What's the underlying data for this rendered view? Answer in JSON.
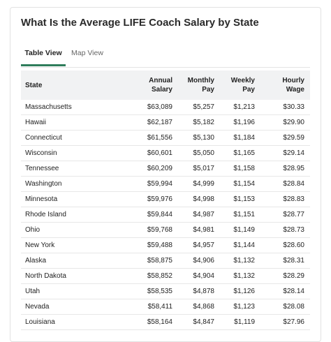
{
  "header": {
    "title": "What Is the Average LIFE Coach Salary by State"
  },
  "tabs": [
    "Table View",
    "Map View"
  ],
  "table": {
    "columns": [
      [
        "State"
      ],
      [
        "Annual",
        "Salary"
      ],
      [
        "Monthly",
        "Pay"
      ],
      [
        "Weekly",
        "Pay"
      ],
      [
        "Hourly",
        "Wage"
      ]
    ],
    "rows": [
      [
        "Massachusetts",
        "$63,089",
        "$5,257",
        "$1,213",
        "$30.33"
      ],
      [
        "Hawaii",
        "$62,187",
        "$5,182",
        "$1,196",
        "$29.90"
      ],
      [
        "Connecticut",
        "$61,556",
        "$5,130",
        "$1,184",
        "$29.59"
      ],
      [
        "Wisconsin",
        "$60,601",
        "$5,050",
        "$1,165",
        "$29.14"
      ],
      [
        "Tennessee",
        "$60,209",
        "$5,017",
        "$1,158",
        "$28.95"
      ],
      [
        "Washington",
        "$59,994",
        "$4,999",
        "$1,154",
        "$28.84"
      ],
      [
        "Minnesota",
        "$59,976",
        "$4,998",
        "$1,153",
        "$28.83"
      ],
      [
        "Rhode Island",
        "$59,844",
        "$4,987",
        "$1,151",
        "$28.77"
      ],
      [
        "Ohio",
        "$59,768",
        "$4,981",
        "$1,149",
        "$28.73"
      ],
      [
        "New York",
        "$59,488",
        "$4,957",
        "$1,144",
        "$28.60"
      ],
      [
        "Alaska",
        "$58,875",
        "$4,906",
        "$1,132",
        "$28.31"
      ],
      [
        "North Dakota",
        "$58,852",
        "$4,904",
        "$1,132",
        "$28.29"
      ],
      [
        "Utah",
        "$58,535",
        "$4,878",
        "$1,126",
        "$28.14"
      ],
      [
        "Nevada",
        "$58,411",
        "$4,868",
        "$1,123",
        "$28.08"
      ],
      [
        "Louisiana",
        "$58,164",
        "$4,847",
        "$1,119",
        "$27.96"
      ]
    ]
  }
}
